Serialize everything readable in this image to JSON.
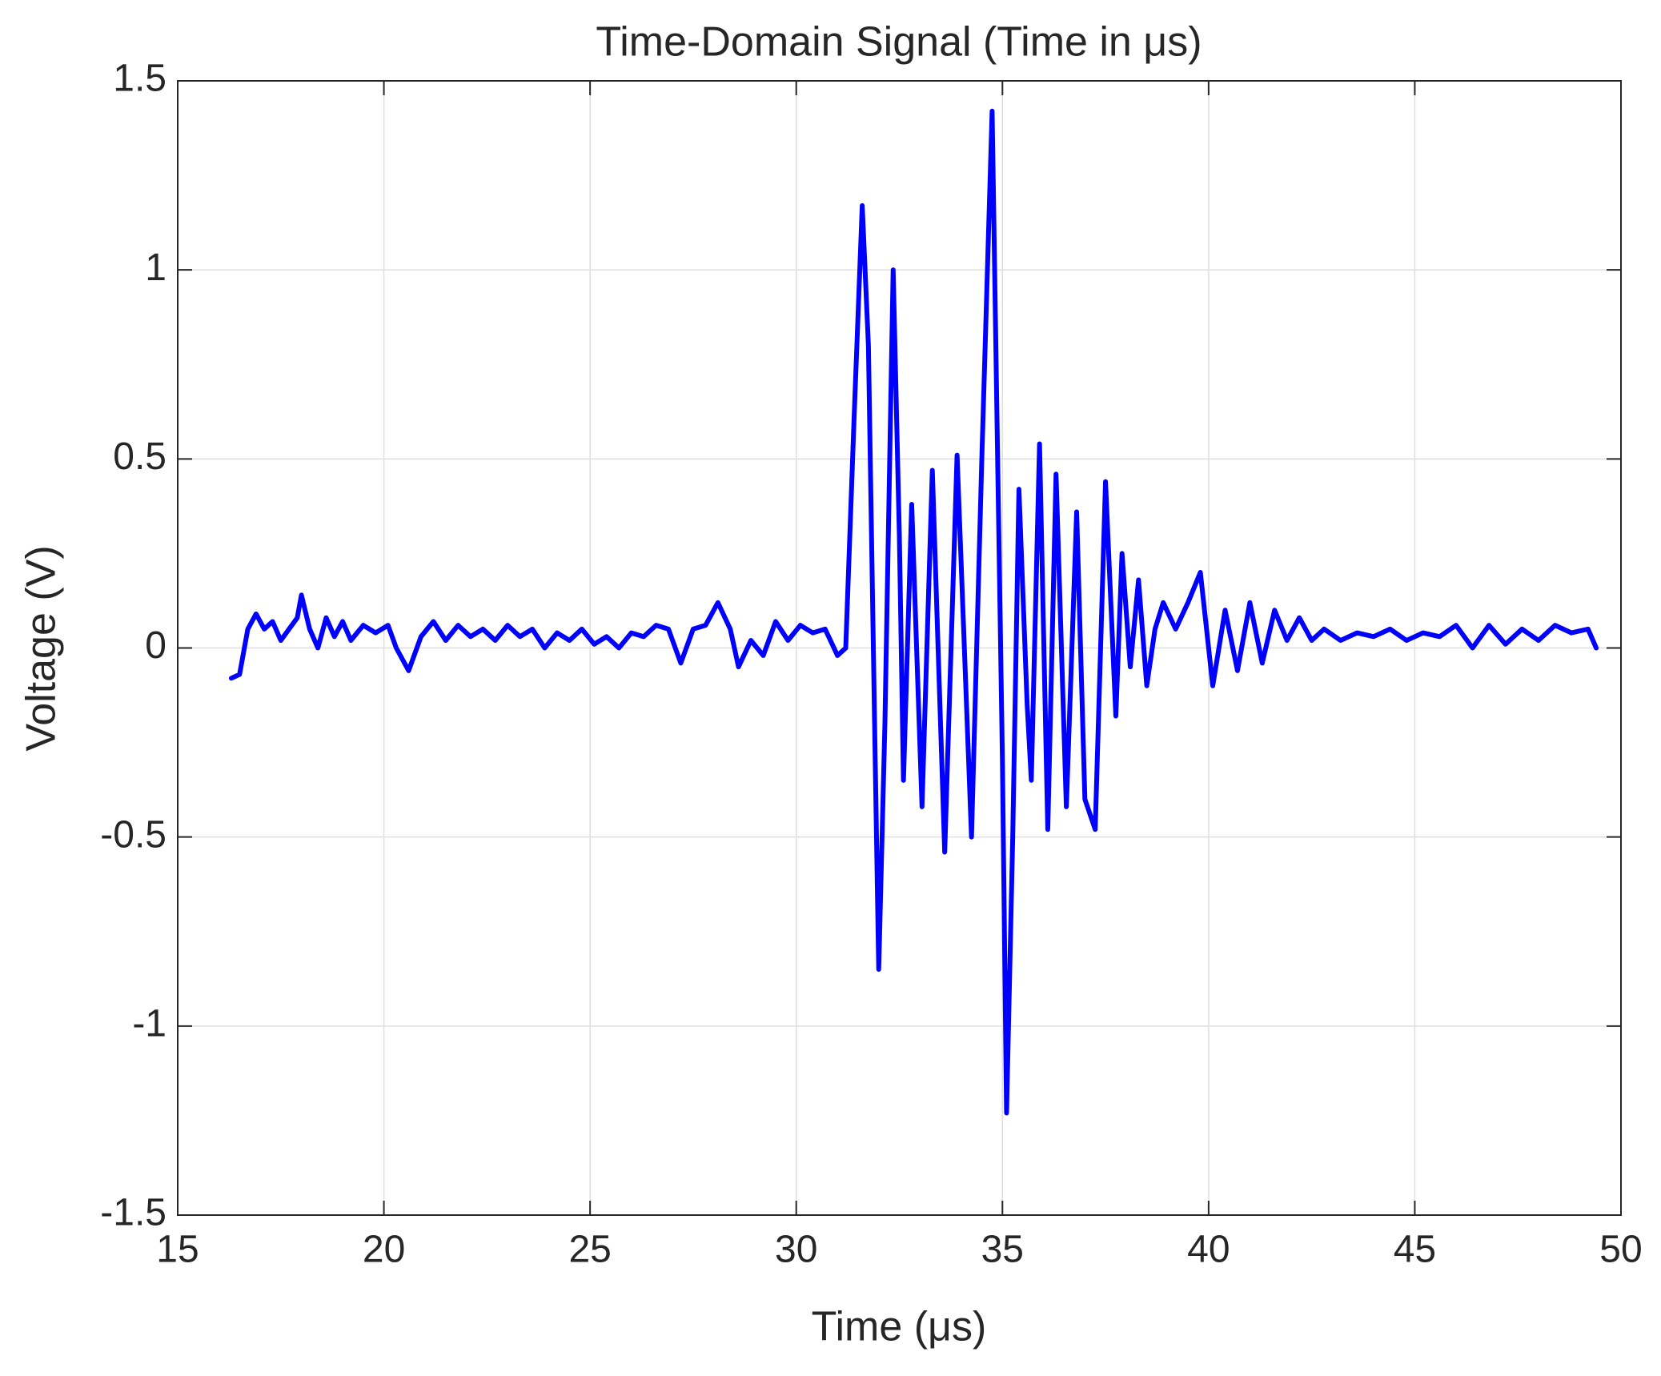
{
  "chart_data": {
    "type": "line",
    "title": "Time-Domain Signal (Time in μs)",
    "x_label": "Time (μs)",
    "y_label": "Voltage (V)",
    "color": "#0000ff",
    "grid": true,
    "xlim": [
      15,
      50
    ],
    "xticks": [
      15,
      20,
      25,
      30,
      35,
      40,
      45,
      50
    ],
    "ylim": [
      -1.5,
      1.5
    ],
    "yticks": [
      -1.5,
      -1,
      -0.5,
      0,
      0.5,
      1,
      1.5
    ],
    "x": [
      16.3,
      16.5,
      16.7,
      16.9,
      17.1,
      17.3,
      17.5,
      17.7,
      17.9,
      18.0,
      18.2,
      18.4,
      18.6,
      18.8,
      19.0,
      19.2,
      19.5,
      19.8,
      20.1,
      20.3,
      20.6,
      20.9,
      21.2,
      21.5,
      21.8,
      22.1,
      22.4,
      22.7,
      23.0,
      23.3,
      23.6,
      23.9,
      24.2,
      24.5,
      24.8,
      25.1,
      25.4,
      25.7,
      26.0,
      26.3,
      26.6,
      26.9,
      27.2,
      27.5,
      27.8,
      28.1,
      28.4,
      28.6,
      28.9,
      29.2,
      29.5,
      29.8,
      30.1,
      30.4,
      30.7,
      31.0,
      31.2,
      31.4,
      31.6,
      31.75,
      31.9,
      32.0,
      32.15,
      32.35,
      32.5,
      32.6,
      32.8,
      33.05,
      33.3,
      33.6,
      33.9,
      34.25,
      34.5,
      34.75,
      35.0,
      35.1,
      35.25,
      35.4,
      35.6,
      35.7,
      35.9,
      36.1,
      36.3,
      36.55,
      36.8,
      37.0,
      37.25,
      37.5,
      37.75,
      37.9,
      38.1,
      38.3,
      38.5,
      38.7,
      38.9,
      39.2,
      39.5,
      39.8,
      40.1,
      40.4,
      40.7,
      41.0,
      41.3,
      41.6,
      41.9,
      42.2,
      42.5,
      42.8,
      43.2,
      43.6,
      44.0,
      44.4,
      44.8,
      45.2,
      45.6,
      46.0,
      46.4,
      46.8,
      47.2,
      47.6,
      48.0,
      48.4,
      48.8,
      49.2,
      49.4
    ],
    "values": [
      -0.08,
      -0.07,
      0.05,
      0.09,
      0.05,
      0.07,
      0.02,
      0.05,
      0.08,
      0.14,
      0.05,
      0.0,
      0.08,
      0.03,
      0.07,
      0.02,
      0.06,
      0.04,
      0.06,
      0.0,
      -0.06,
      0.03,
      0.07,
      0.02,
      0.06,
      0.03,
      0.05,
      0.02,
      0.06,
      0.03,
      0.05,
      0.0,
      0.04,
      0.02,
      0.05,
      0.01,
      0.03,
      0.0,
      0.04,
      0.03,
      0.06,
      0.05,
      -0.04,
      0.05,
      0.06,
      0.12,
      0.05,
      -0.05,
      0.02,
      -0.02,
      0.07,
      0.02,
      0.06,
      0.04,
      0.05,
      -0.02,
      0.0,
      0.6,
      1.17,
      0.8,
      -0.2,
      -0.85,
      -0.2,
      1.0,
      0.3,
      -0.35,
      0.38,
      -0.42,
      0.47,
      -0.54,
      0.51,
      -0.5,
      0.5,
      1.42,
      -0.3,
      -1.23,
      -0.5,
      0.42,
      -0.15,
      -0.35,
      0.54,
      -0.48,
      0.46,
      -0.42,
      0.36,
      -0.4,
      -0.48,
      0.44,
      -0.18,
      0.25,
      -0.05,
      0.18,
      -0.1,
      0.05,
      0.12,
      0.05,
      0.12,
      0.2,
      -0.1,
      0.1,
      -0.06,
      0.12,
      -0.04,
      0.1,
      0.02,
      0.08,
      0.02,
      0.05,
      0.02,
      0.04,
      0.03,
      0.05,
      0.02,
      0.04,
      0.03,
      0.06,
      0.0,
      0.06,
      0.01,
      0.05,
      0.02,
      0.06,
      0.04,
      0.05,
      0.0
    ]
  }
}
